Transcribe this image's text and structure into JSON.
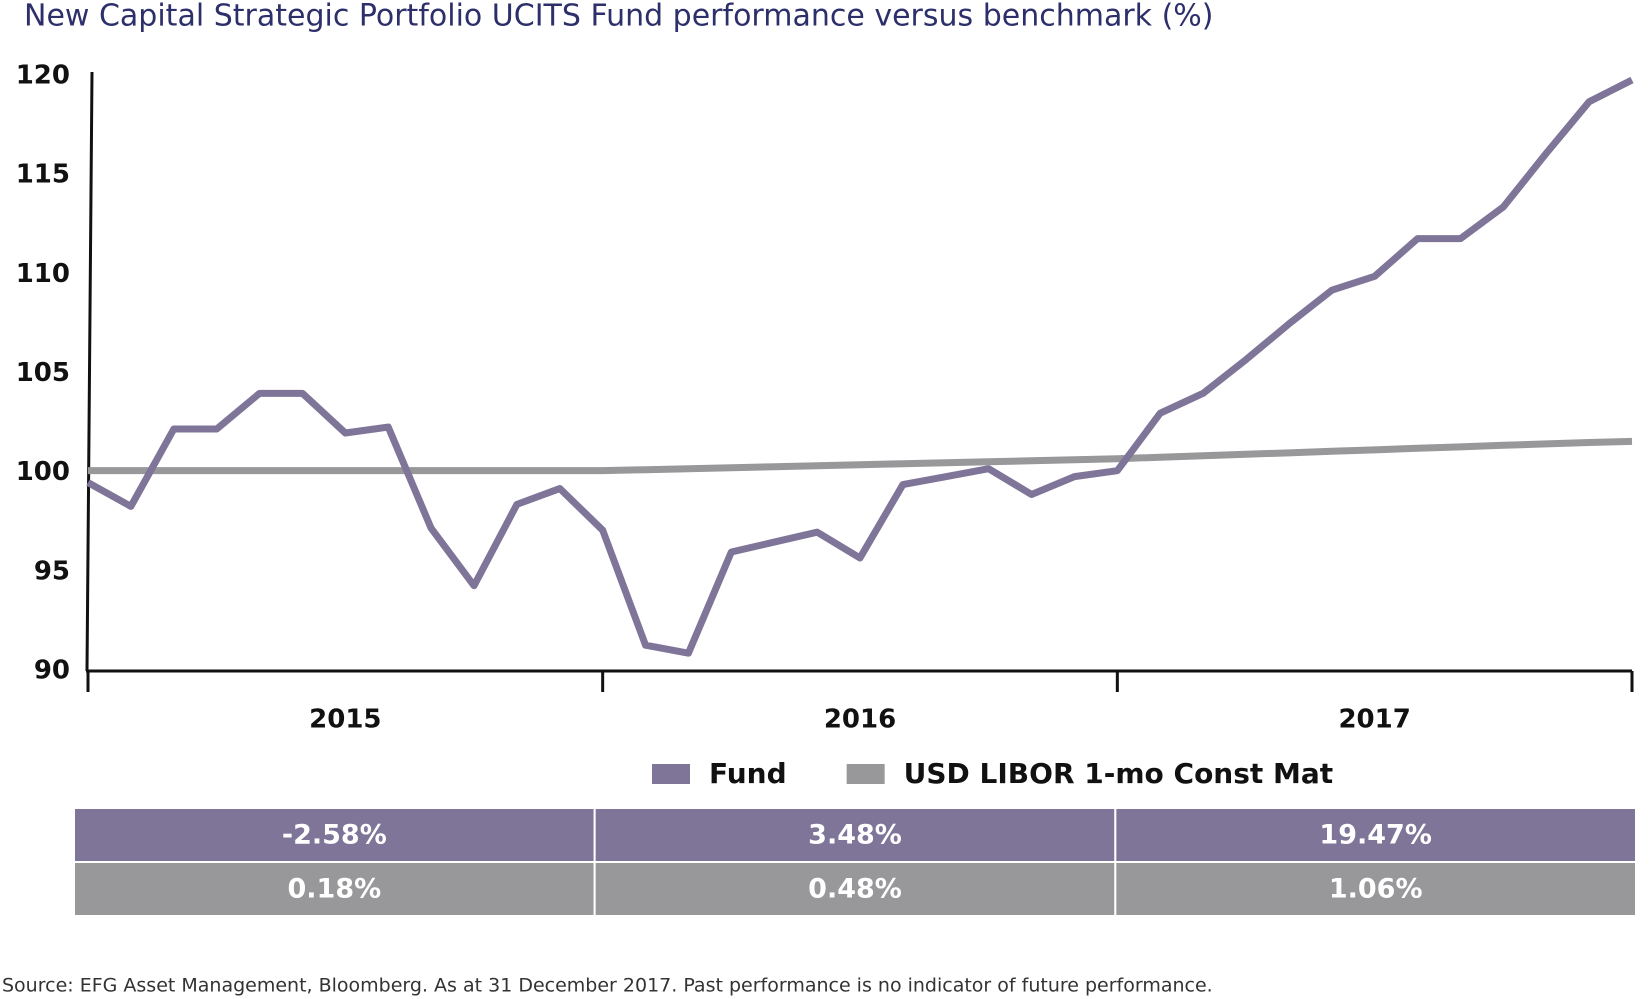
{
  "chart_data": {
    "type": "line",
    "title": "New Capital Strategic Portfolio UCITS Fund performance versus benchmark (%)",
    "categories": [
      null,
      null,
      null,
      null,
      null,
      null,
      null,
      null,
      null,
      null,
      null,
      null,
      null,
      null,
      null,
      null,
      null,
      null,
      null,
      null,
      null,
      null,
      null,
      null,
      null,
      null,
      null,
      null,
      null,
      null,
      null,
      null,
      null,
      null,
      null,
      null,
      null
    ],
    "year_labels": [
      "2015",
      "2016",
      "2017"
    ],
    "series": [
      {
        "name": "Fund",
        "color": "#7e7599",
        "values": [
          99.5,
          98.3,
          102.2,
          102.2,
          104.0,
          104.0,
          102.0,
          102.3,
          97.2,
          94.3,
          98.4,
          99.2,
          97.1,
          91.3,
          90.9,
          96.0,
          96.5,
          97.0,
          95.7,
          99.4,
          99.8,
          100.2,
          98.9,
          99.8,
          100.1,
          103.0,
          104.0,
          105.7,
          107.5,
          109.2,
          109.9,
          111.8,
          111.8,
          113.4,
          116.1,
          118.7,
          119.8
        ]
      },
      {
        "name": "USD LIBOR 1-mo Const Mat",
        "color": "#98989b",
        "values": [
          100.1,
          100.1,
          100.1,
          100.1,
          100.1,
          100.1,
          100.1,
          100.1,
          100.1,
          100.1,
          100.1,
          100.1,
          100.1,
          100.15,
          100.2,
          100.25,
          100.3,
          100.35,
          100.4,
          100.45,
          100.5,
          100.55,
          100.6,
          100.65,
          100.7,
          100.78,
          100.85,
          100.93,
          101.0,
          101.08,
          101.15,
          101.23,
          101.3,
          101.38,
          101.45,
          101.52,
          101.58
        ]
      }
    ],
    "ylim": [
      90,
      120
    ],
    "yticks": [
      90,
      95,
      100,
      105,
      110,
      115,
      120
    ],
    "table": {
      "rows": [
        [
          "-2.58%",
          "3.48%",
          "19.47%"
        ],
        [
          "0.18%",
          "0.48%",
          "1.06%"
        ]
      ]
    },
    "source": "Source: EFG Asset Management, Bloomberg. As at 31 December 2017. Past performance is no indicator of future performance."
  }
}
